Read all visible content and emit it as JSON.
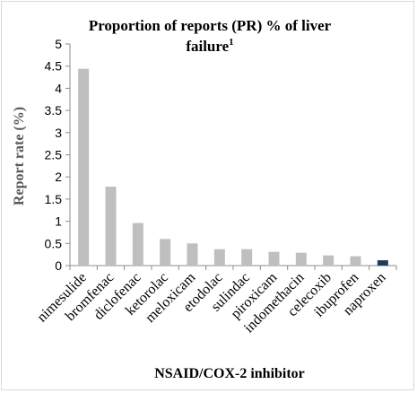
{
  "chart_data": {
    "type": "bar",
    "title": "Proportion of reports (PR) % of liver",
    "title_line2": "failure",
    "title_superscript": "1",
    "xlabel": "NSAID/COX-2 inhibitor",
    "ylabel": "Report rate (%)",
    "ylim": [
      0,
      5
    ],
    "yticks": [
      "0",
      "0.5",
      "1",
      "1.5",
      "2",
      "2.5",
      "3",
      "3.5",
      "4",
      "4.5",
      "5"
    ],
    "grid": false,
    "legend": "none",
    "categories": [
      "nimesulide",
      "bromfenac",
      "diclofenac",
      "ketorolac",
      "meloxicam",
      "etodolac",
      "sulindac",
      "piroxicam",
      "indomethacin",
      "celecoxib",
      "ibuprofen",
      "naproxen"
    ],
    "series": [
      {
        "values": [
          4.44,
          1.78,
          0.96,
          0.6,
          0.5,
          0.37,
          0.37,
          0.31,
          0.29,
          0.23,
          0.21,
          0.12
        ]
      }
    ],
    "colors": {
      "default_bar": "#bfbfbf",
      "highlight_bar": "#1f3b5c",
      "highlight_category": "naproxen",
      "axis": "#8c8c8c"
    }
  }
}
